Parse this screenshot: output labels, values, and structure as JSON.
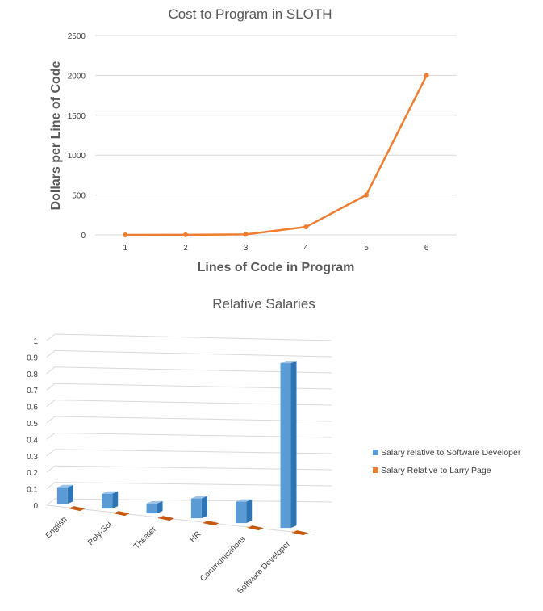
{
  "chart_data": [
    {
      "type": "line",
      "title": "Cost to Program in SLOTH",
      "xlabel": "Lines of Code in Program",
      "ylabel": "Dollars per Line of Code",
      "x": [
        1,
        2,
        3,
        4,
        5,
        6
      ],
      "series": [
        {
          "values": [
            0,
            1,
            6,
            100,
            500,
            2000
          ]
        }
      ],
      "ylim": [
        0,
        2500
      ],
      "yticks": [
        0,
        500,
        1000,
        1500,
        2000,
        2500
      ],
      "grid": true,
      "colors": {
        "line": "#ED7D31",
        "grid": "#D9D9D9"
      }
    },
    {
      "type": "bar",
      "title": "Relative Salaries",
      "categories": [
        "English",
        "Poly-Sci",
        "Theater",
        "HR",
        "Communications",
        "Software Developer"
      ],
      "series": [
        {
          "name": "Salary relative to Software Developer",
          "values": [
            0.1,
            0.09,
            0.06,
            0.12,
            0.13,
            1.0
          ],
          "color": "#5B9BD5"
        },
        {
          "name": "Salary Relative to Larry Page",
          "values": [
            0.0002,
            0.0002,
            0.0001,
            0.0002,
            0.0002,
            0.001
          ],
          "color": "#ED7D31"
        }
      ],
      "ylim": [
        0,
        1
      ],
      "yticks": [
        "0",
        "0.1",
        "0.2",
        "0.3",
        "0.4",
        "0.5",
        "0.6",
        "0.7",
        "0.8",
        "0.9",
        "1"
      ],
      "grid": true,
      "legend": "right",
      "style": "3d-column"
    }
  ]
}
